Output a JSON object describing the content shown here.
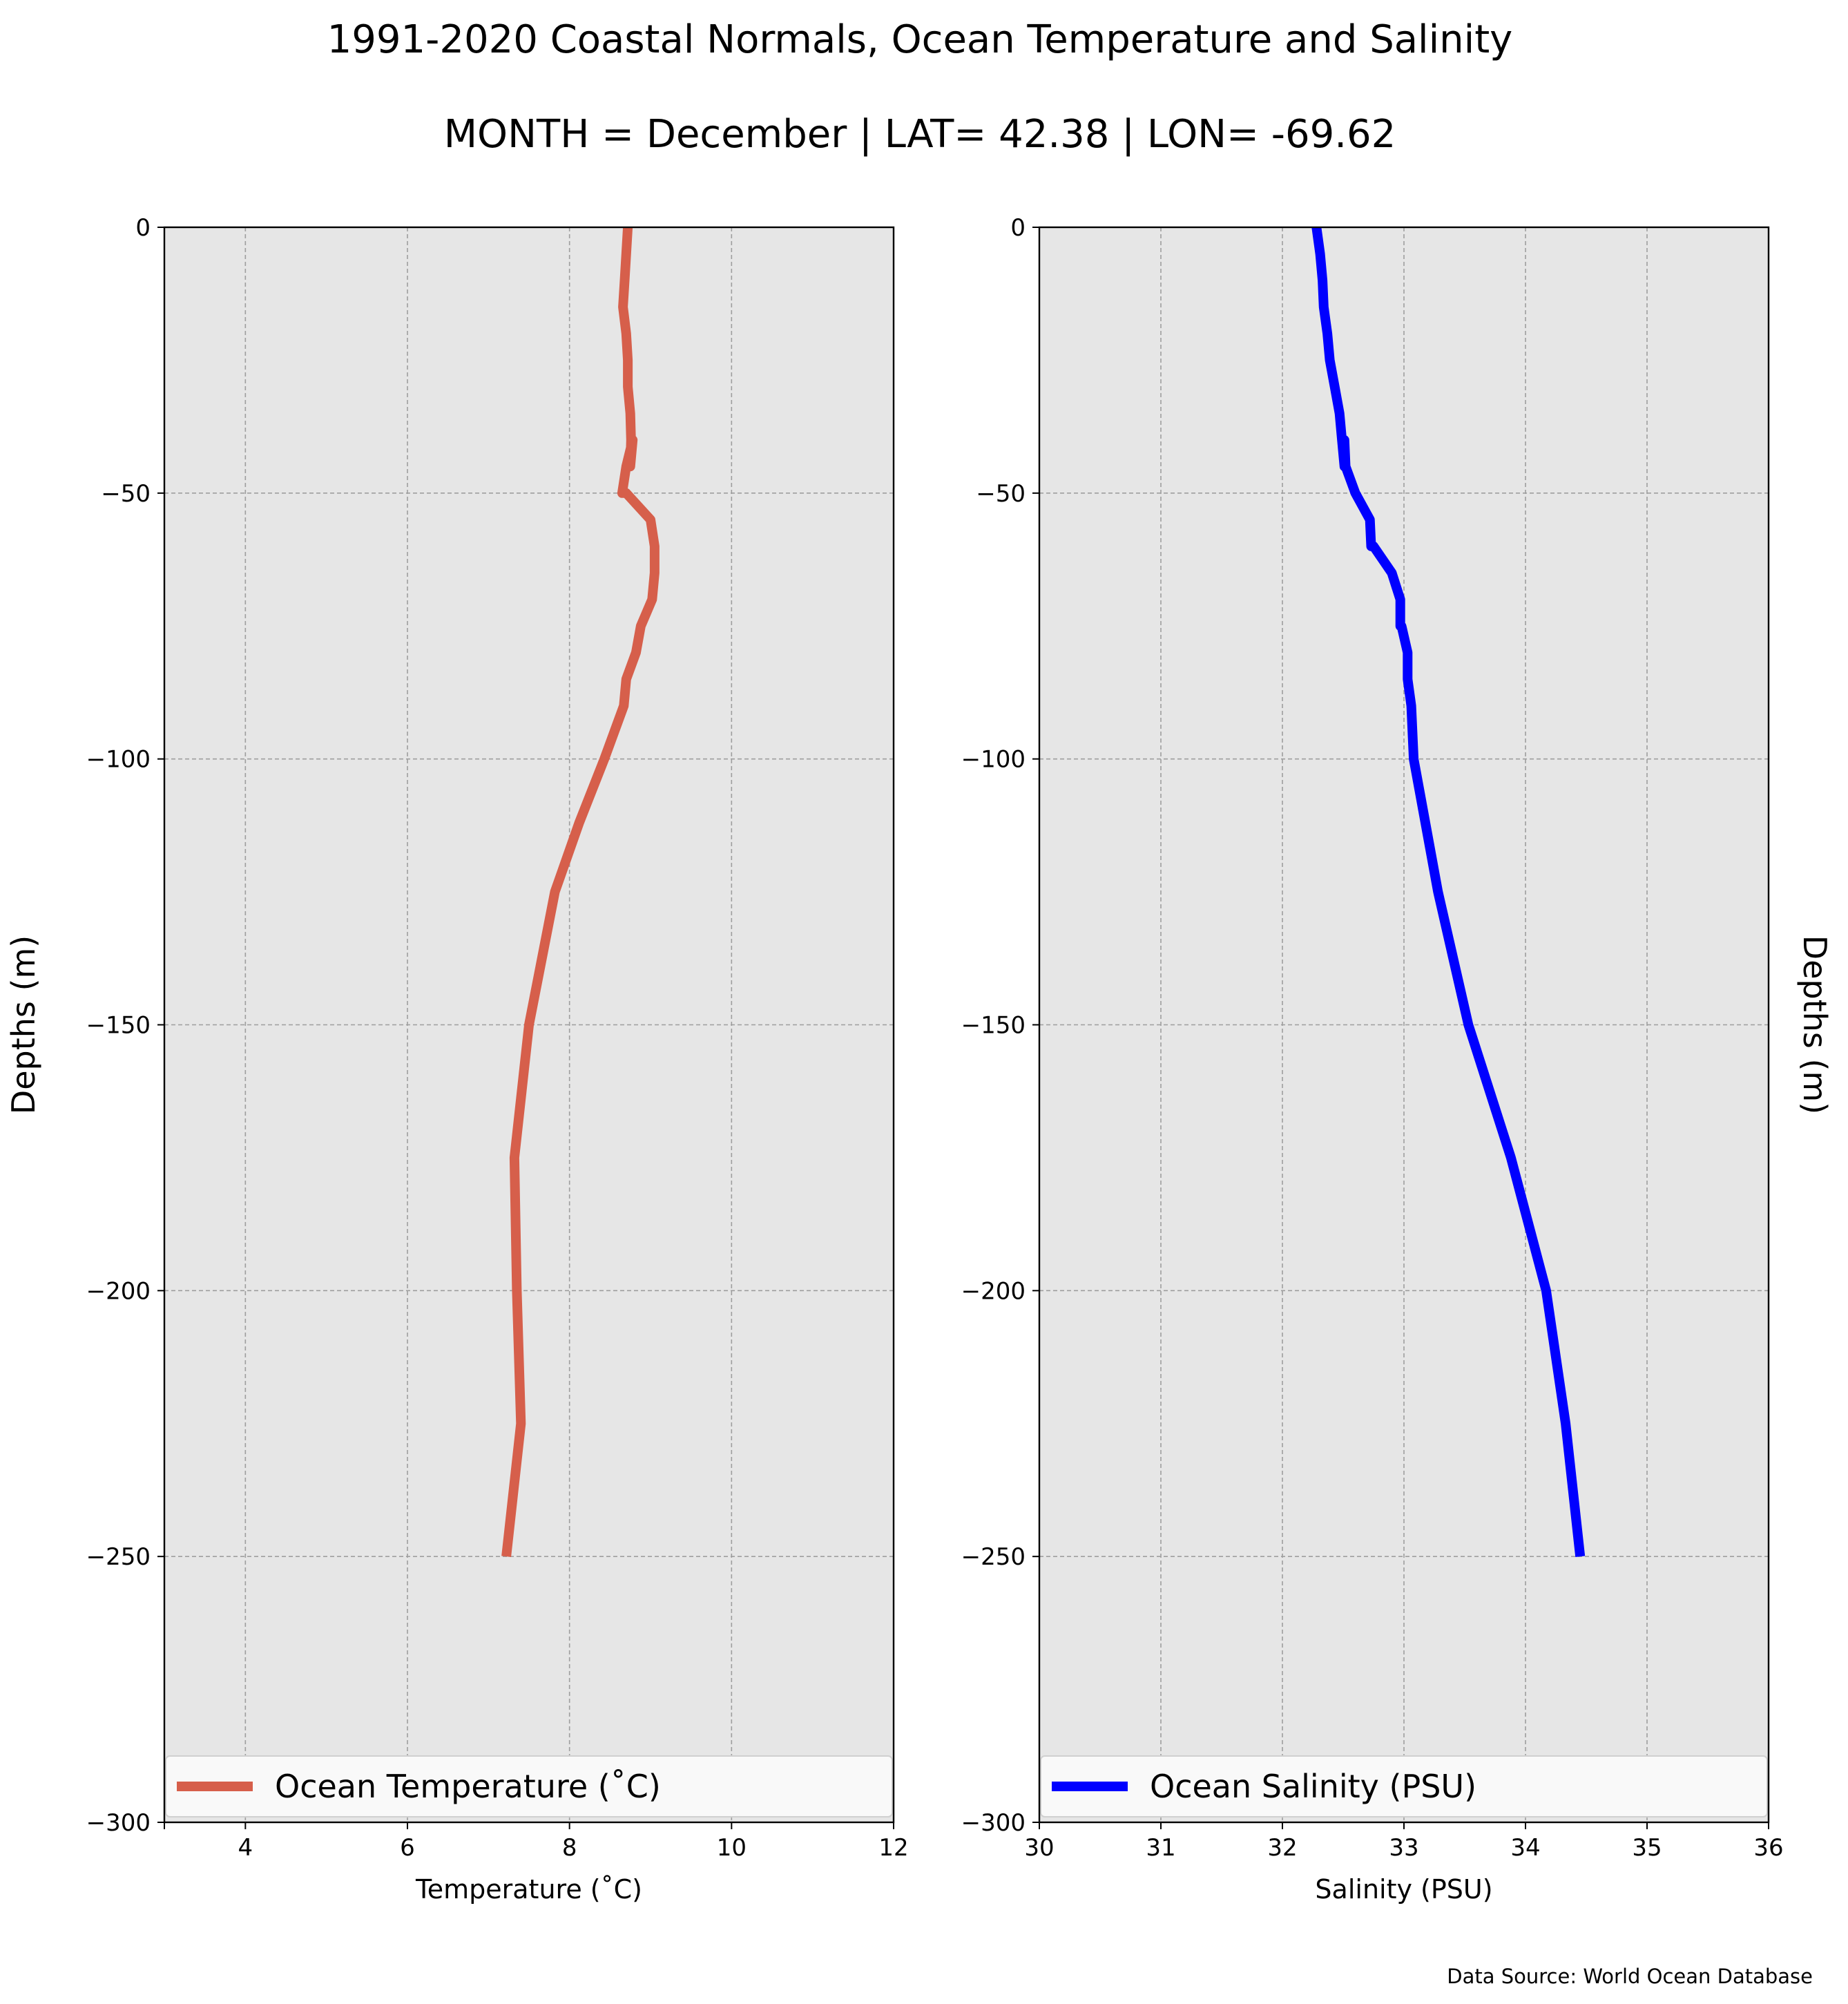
{
  "title_line1": "1991-2020 Coastal Normals, Ocean Temperature and Salinity",
  "title_line2": "MONTH = December | LAT= 42.38 | LON= -69.62",
  "source": "Data Source: World Ocean Database",
  "colors": {
    "panel_bg": "#e6e6e6",
    "grid": "#9e9e9e",
    "temperature": "#d65f4b",
    "salinity": "#0000ff",
    "legend_bg": "#f9f9f9"
  },
  "chart_data": [
    {
      "type": "line",
      "xlabel": "Temperature ($^\\circ$C)",
      "xlabel_display": "Temperature (˚C)",
      "ylabel": "Depths (m)",
      "ylabel_side": "left",
      "xlim": [
        3,
        12
      ],
      "ylim": [
        -300,
        0
      ],
      "xticks": [
        4,
        6,
        8,
        10,
        12
      ],
      "yticks": [
        0,
        -50,
        -100,
        -150,
        -200,
        -250,
        -300
      ],
      "ytick_labels": [
        "0",
        "−50",
        "−100",
        "−150",
        "−200",
        "−250",
        "−300"
      ],
      "grid": true,
      "legend_placement": "lower center",
      "series": [
        {
          "name": "Ocean Temperature (˚C)",
          "color": "#d65f4b",
          "x": [
            8.72,
            8.7,
            8.68,
            8.66,
            8.7,
            8.72,
            8.72,
            8.75,
            8.76,
            8.75,
            8.78,
            8.7,
            8.65,
            8.7,
            9.0,
            9.05,
            9.05,
            9.02,
            8.88,
            8.82,
            8.7,
            8.67,
            8.55,
            8.43,
            8.12,
            7.82,
            7.5,
            7.32,
            7.35,
            7.4,
            7.22
          ],
          "y": [
            0,
            -5,
            -10,
            -15,
            -20,
            -25,
            -30,
            -35,
            -40,
            -45,
            -40,
            -45,
            -50,
            -50,
            -55,
            -60,
            -65,
            -70,
            -75,
            -80,
            -85,
            -90,
            -95,
            -100,
            -112,
            -125,
            -150,
            -175,
            -200,
            -225,
            -250
          ]
        }
      ]
    },
    {
      "type": "line",
      "xlabel": "Salinity (PSU)",
      "ylabel": "Depths (m)",
      "ylabel_side": "right",
      "xlim": [
        30,
        36
      ],
      "ylim": [
        -300,
        0
      ],
      "xticks": [
        30,
        31,
        32,
        33,
        34,
        35,
        36
      ],
      "yticks": [
        0,
        -50,
        -100,
        -150,
        -200,
        -250,
        -300
      ],
      "ytick_labels": [
        "0",
        "−50",
        "−100",
        "−150",
        "−200",
        "−250",
        "−300"
      ],
      "grid": true,
      "legend_placement": "lower center",
      "series": [
        {
          "name": "Ocean Salinity (PSU)",
          "color": "#0000ff",
          "x": [
            32.28,
            32.31,
            32.33,
            32.34,
            32.37,
            32.39,
            32.43,
            32.47,
            32.49,
            32.51,
            32.51,
            32.52,
            32.52,
            32.6,
            32.72,
            32.73,
            32.75,
            32.9,
            32.97,
            32.97,
            32.98,
            33.03,
            33.03,
            33.06,
            33.08,
            33.28,
            33.53,
            33.88,
            34.17,
            34.33,
            34.45
          ],
          "y": [
            0,
            -5,
            -10,
            -15,
            -20,
            -25,
            -30,
            -35,
            -40,
            -45,
            -40,
            -45,
            -45,
            -50,
            -55,
            -60,
            -60,
            -65,
            -70,
            -75,
            -75,
            -80,
            -85,
            -90,
            -100,
            -125,
            -150,
            -175,
            -200,
            -225,
            -250
          ]
        }
      ]
    }
  ]
}
